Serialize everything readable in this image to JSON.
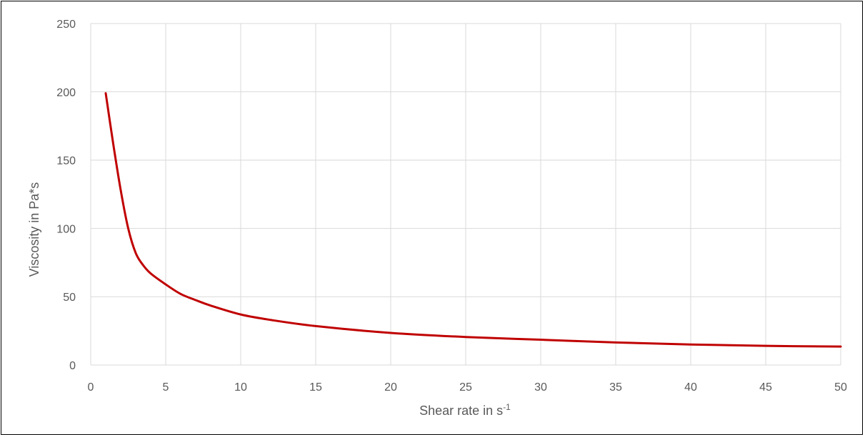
{
  "chart_data": {
    "type": "line",
    "title": "",
    "xlabel": "Shear rate in s",
    "xlabel_superscript": "-1",
    "ylabel": "Viscosity in Pa*s",
    "xlim": [
      0,
      50
    ],
    "ylim": [
      0,
      250
    ],
    "x_ticks": [
      "0",
      "5",
      "10",
      "15",
      "20",
      "25",
      "30",
      "35",
      "40",
      "45",
      "50"
    ],
    "y_ticks": [
      "0",
      "50",
      "100",
      "150",
      "200",
      "250"
    ],
    "grid": true,
    "legend": "none",
    "series": [
      {
        "color": "#c00000",
        "x": [
          1,
          1.5,
          2,
          2.5,
          3,
          3.5,
          4,
          5,
          6,
          7,
          8,
          10,
          12,
          15,
          20,
          25,
          30,
          35,
          40,
          45,
          50
        ],
        "values": [
          199,
          162,
          128,
          100,
          82,
          73,
          67,
          59,
          52,
          47.5,
          43.5,
          37,
          33,
          28.5,
          23.5,
          20.5,
          18.5,
          16.5,
          15,
          14,
          13.5
        ]
      }
    ]
  }
}
